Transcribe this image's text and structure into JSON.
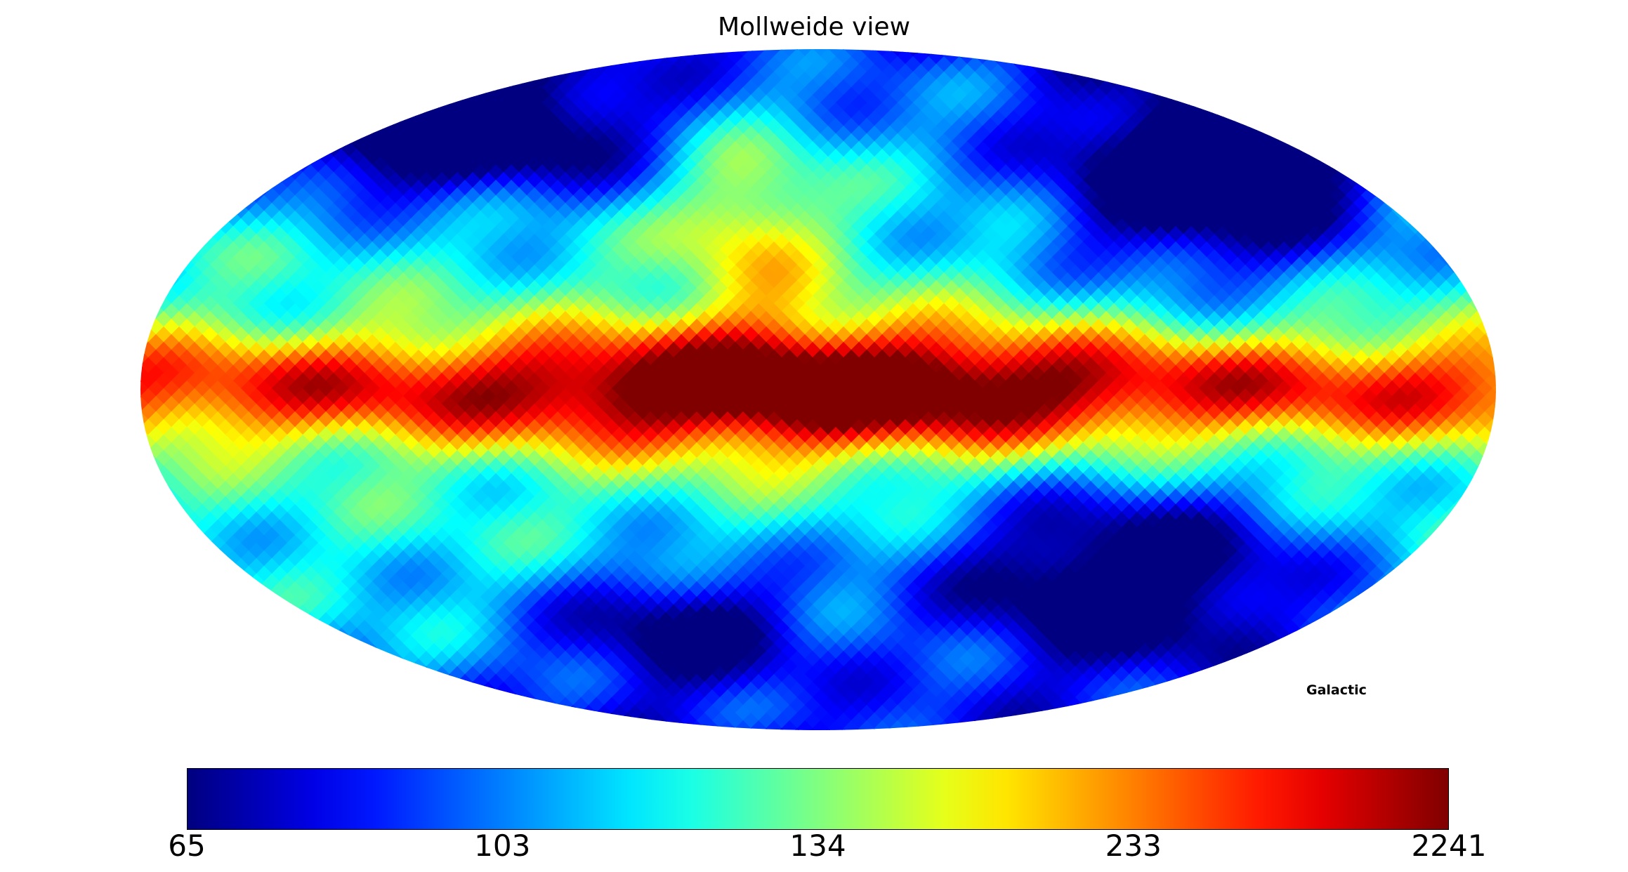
{
  "chart_data": {
    "type": "heatmap",
    "projection": "mollweide",
    "title": "Mollweide view",
    "coord_system": "Galactic",
    "colormap": "jet",
    "colorbar": {
      "orientation": "horizontal",
      "min": 65,
      "max": 2241,
      "tick_labels": [
        "65",
        "103",
        "134",
        "233",
        "2241"
      ]
    },
    "grid": false
  }
}
